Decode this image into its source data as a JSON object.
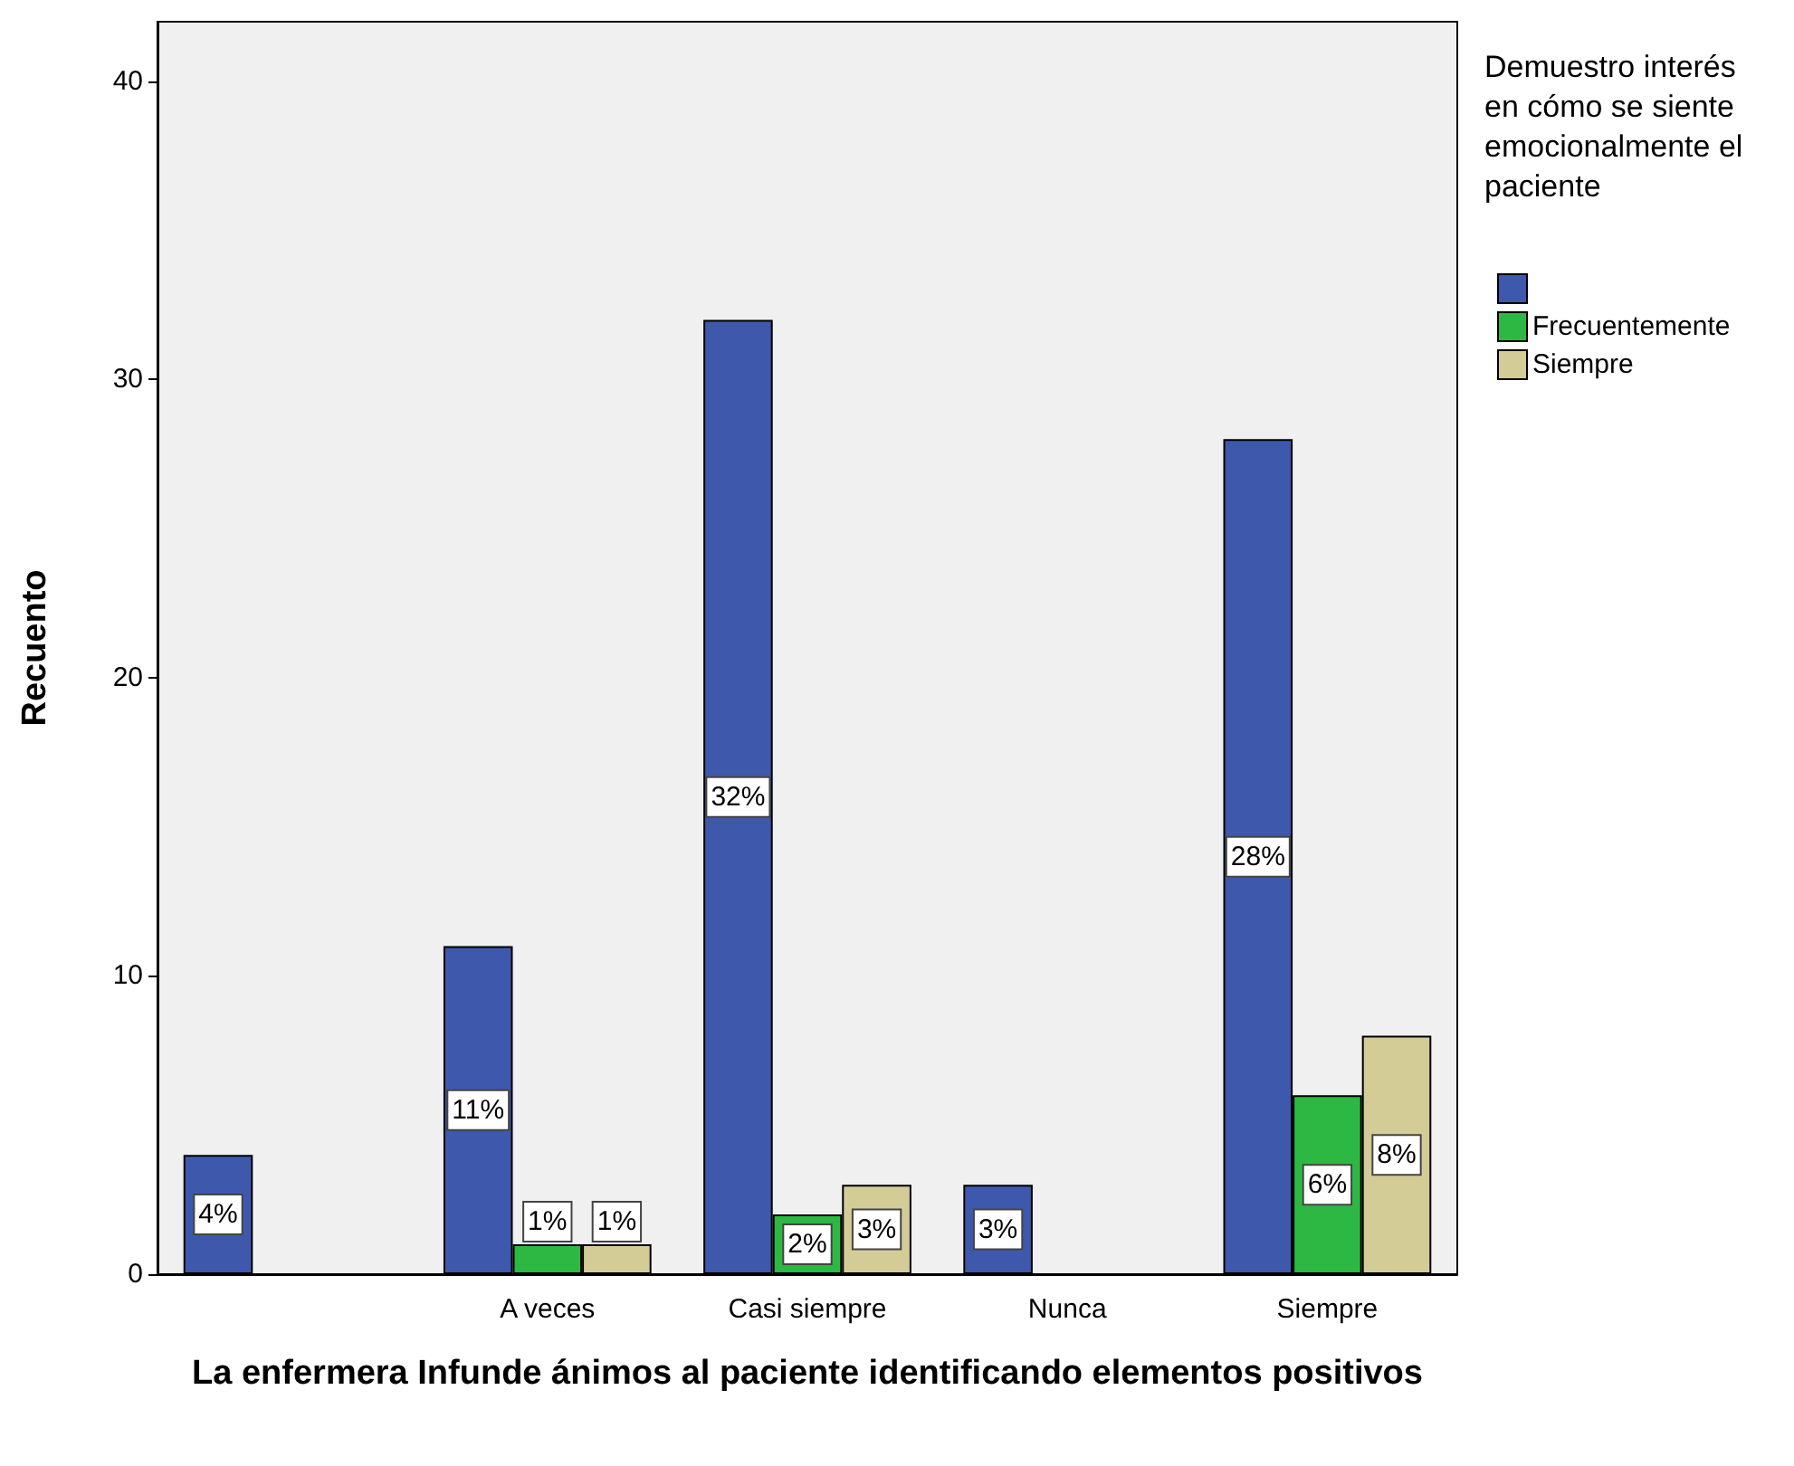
{
  "chart_data": {
    "type": "bar",
    "xlabel": "La enfermera Infunde ánimos al paciente identificando elementos positivos",
    "ylabel": "Recuento",
    "legend_title": "Demuestro interés en cómo se siente emocionalmente el paciente",
    "categories": [
      null,
      "A veces",
      "Casi siempre",
      "Nunca",
      "Siempre"
    ],
    "series": [
      {
        "color": "#3e58ac",
        "values": [
          4,
          11,
          32,
          3,
          28
        ],
        "value_labels": [
          "4%",
          "11%",
          "32%",
          "3%",
          "28%"
        ]
      },
      {
        "name": "Frecuentemente",
        "color": "#2db844",
        "values": [
          null,
          1,
          2,
          null,
          6
        ],
        "value_labels": [
          null,
          "1%",
          "2%",
          null,
          "6%"
        ]
      },
      {
        "name": "Siempre",
        "color": "#d4cc97",
        "values": [
          null,
          1,
          3,
          null,
          8
        ],
        "value_labels": [
          null,
          "1%",
          "3%",
          null,
          "8%"
        ]
      }
    ],
    "ylim": [
      0,
      42
    ],
    "yticks": [
      0,
      10,
      20,
      30,
      40
    ],
    "grid": false,
    "legend": "top right"
  }
}
